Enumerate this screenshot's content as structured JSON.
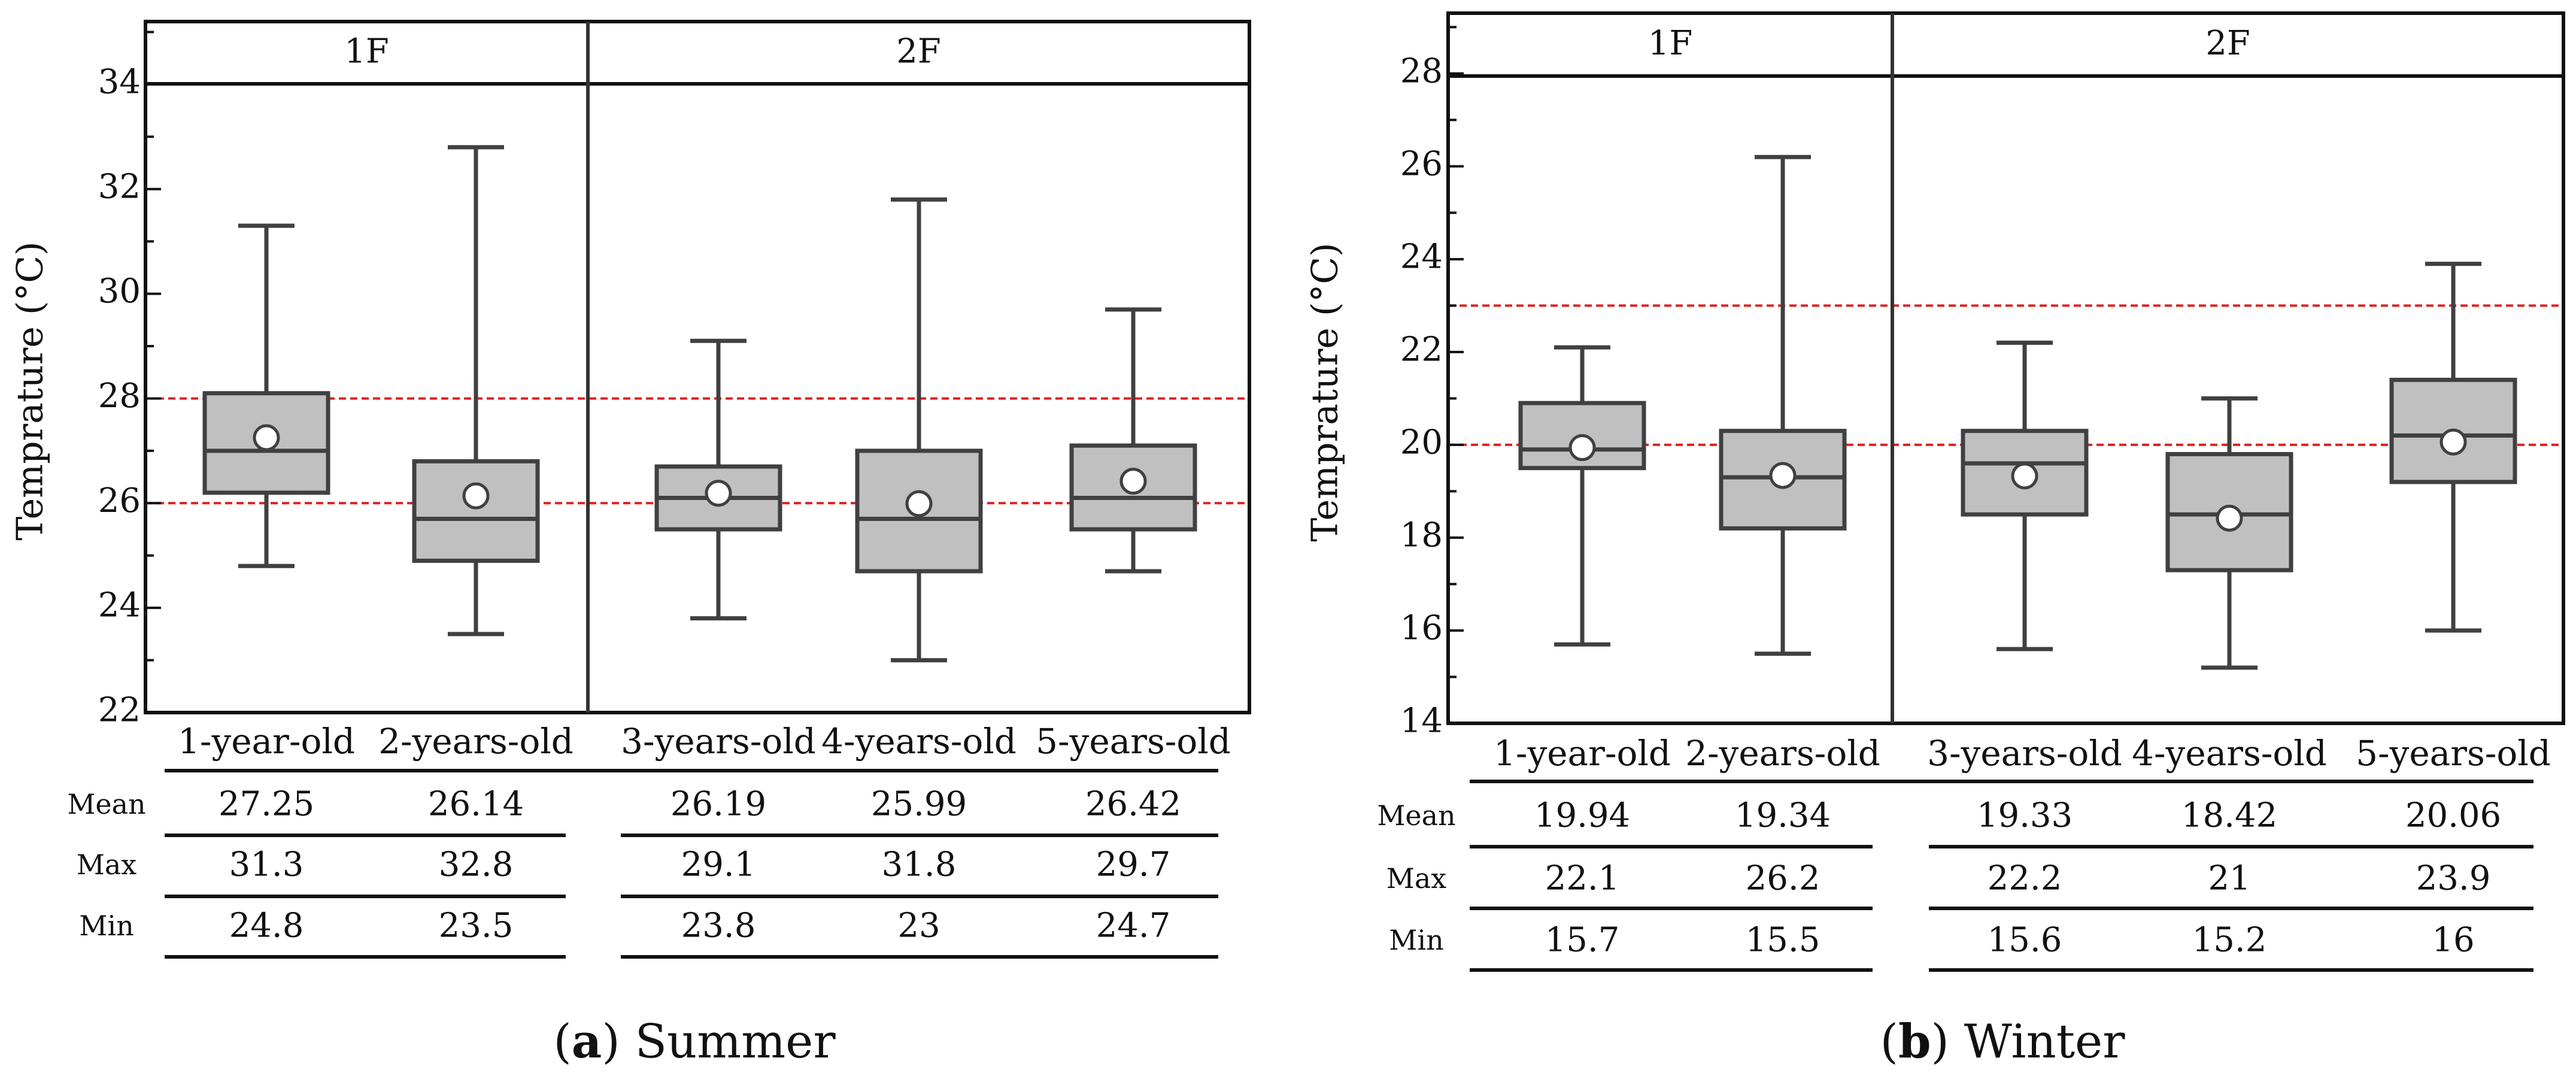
{
  "chart_data": [
    {
      "type": "box",
      "panel_label": "a",
      "caption": "Summer",
      "ylabel": "Temprature (°C)",
      "ylim": [
        22,
        35.2
      ],
      "yticks": [
        22,
        24,
        26,
        28,
        30,
        32,
        34
      ],
      "groups": [
        {
          "label": "1F",
          "categories": [
            0,
            1
          ]
        },
        {
          "label": "2F",
          "categories": [
            2,
            3,
            4
          ]
        }
      ],
      "categories": [
        "1-year-old",
        "2-years-old",
        "3-years-old",
        "4-years-old",
        "5-years-old"
      ],
      "boxes": [
        {
          "q1": 26.2,
          "median": 27.0,
          "q3": 28.1,
          "min": 24.8,
          "max": 31.3,
          "mean": 27.25
        },
        {
          "q1": 24.9,
          "median": 25.7,
          "q3": 26.8,
          "min": 23.5,
          "max": 32.8,
          "mean": 26.14
        },
        {
          "q1": 25.5,
          "median": 26.1,
          "q3": 26.7,
          "min": 23.8,
          "max": 29.1,
          "mean": 26.19
        },
        {
          "q1": 24.7,
          "median": 25.7,
          "q3": 27.0,
          "min": 23.0,
          "max": 31.8,
          "mean": 25.99
        },
        {
          "q1": 25.5,
          "median": 26.1,
          "q3": 27.1,
          "min": 24.7,
          "max": 29.7,
          "mean": 26.42
        }
      ],
      "reference_lines": [
        26,
        28
      ],
      "table": {
        "row_labels": [
          "Mean",
          "Max",
          "Min"
        ],
        "rows": [
          [
            "27.25",
            "26.14",
            "26.19",
            "25.99",
            "26.42"
          ],
          [
            "31.3",
            "32.8",
            "29.1",
            "31.8",
            "29.7"
          ],
          [
            "24.8",
            "23.5",
            "23.8",
            "23",
            "24.7"
          ]
        ]
      }
    },
    {
      "type": "box",
      "panel_label": "b",
      "caption": "Winter",
      "ylabel": "Temprature (°C)",
      "ylim": [
        14,
        29.3
      ],
      "yticks": [
        14,
        16,
        18,
        20,
        22,
        24,
        26,
        28
      ],
      "groups": [
        {
          "label": "1F",
          "categories": [
            0,
            1
          ]
        },
        {
          "label": "2F",
          "categories": [
            2,
            3,
            4
          ]
        }
      ],
      "categories": [
        "1-year-old",
        "2-years-old",
        "3-years-old",
        "4-years-old",
        "5-years-old"
      ],
      "boxes": [
        {
          "q1": 19.5,
          "median": 19.9,
          "q3": 20.9,
          "min": 15.7,
          "max": 22.1,
          "mean": 19.94
        },
        {
          "q1": 18.2,
          "median": 19.3,
          "q3": 20.3,
          "min": 15.5,
          "max": 26.2,
          "mean": 19.34
        },
        {
          "q1": 18.5,
          "median": 19.6,
          "q3": 20.3,
          "min": 15.6,
          "max": 22.2,
          "mean": 19.33
        },
        {
          "q1": 17.3,
          "median": 18.5,
          "q3": 19.8,
          "min": 15.2,
          "max": 21.0,
          "mean": 18.42
        },
        {
          "q1": 19.2,
          "median": 20.2,
          "q3": 21.4,
          "min": 16.0,
          "max": 23.9,
          "mean": 20.06
        }
      ],
      "reference_lines": [
        20,
        23
      ],
      "table": {
        "row_labels": [
          "Mean",
          "Max",
          "Min"
        ],
        "rows": [
          [
            "19.94",
            "19.34",
            "19.33",
            "18.42",
            "20.06"
          ],
          [
            "22.1",
            "26.2",
            "22.2",
            "21",
            "23.9"
          ],
          [
            "15.7",
            "15.5",
            "15.6",
            "15.2",
            "16"
          ]
        ]
      }
    }
  ],
  "colors": {
    "box_fill": "#c0c0c0",
    "box_stroke": "#404040",
    "frame": "#111111",
    "reference_line": "#e02020",
    "mean_marker_fill": "#ffffff"
  }
}
